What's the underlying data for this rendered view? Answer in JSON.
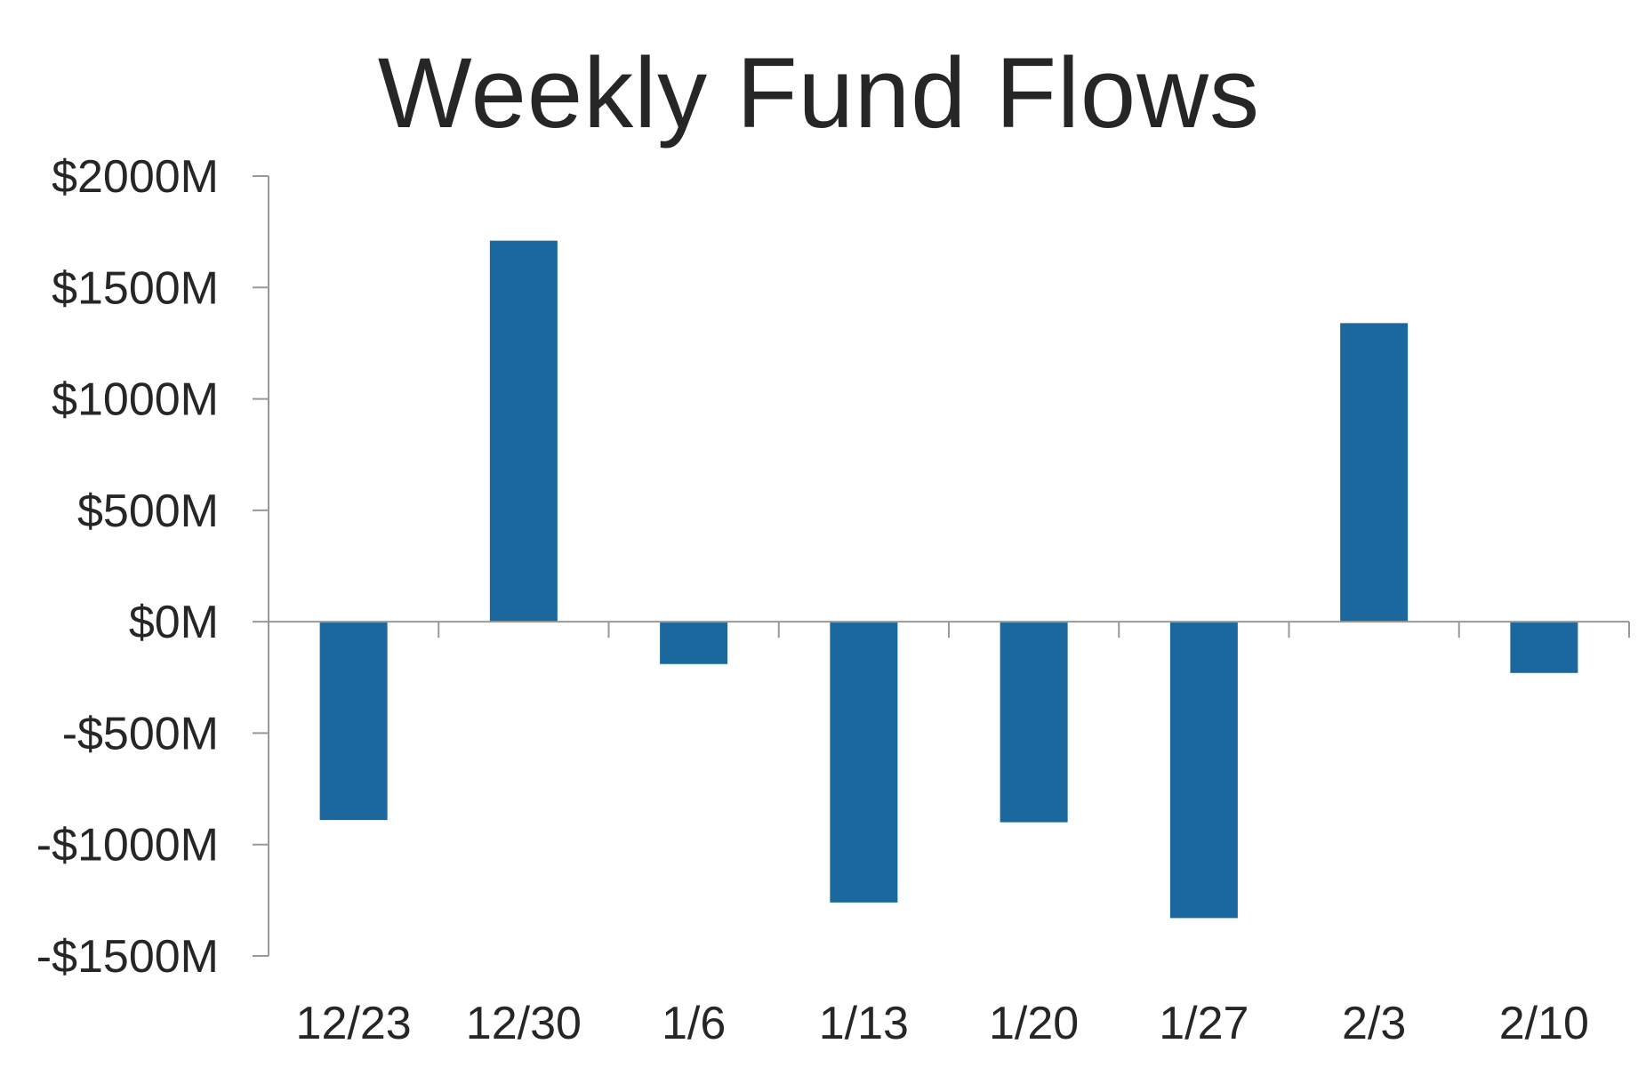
{
  "chart_data": {
    "type": "bar",
    "title": "Weekly Fund Flows",
    "xlabel": "",
    "ylabel": "",
    "categories": [
      "12/23",
      "12/30",
      "1/6",
      "1/13",
      "1/20",
      "1/27",
      "2/3",
      "2/10"
    ],
    "values": [
      -890,
      1710,
      -190,
      -1260,
      -900,
      -1330,
      1340,
      -230
    ],
    "ylim": [
      -1500,
      2000
    ],
    "yticks": [
      2000,
      1500,
      1000,
      500,
      0,
      -500,
      -1000,
      -1500
    ],
    "ytick_labels": [
      "$2000M",
      "$1500M",
      "$1000M",
      "$500M",
      "$0M",
      "-$500M",
      "-$1000M",
      "-$1500M"
    ],
    "bar_color": "#1a689e",
    "axis_color": "#999999",
    "grid": false,
    "legend": "none"
  }
}
